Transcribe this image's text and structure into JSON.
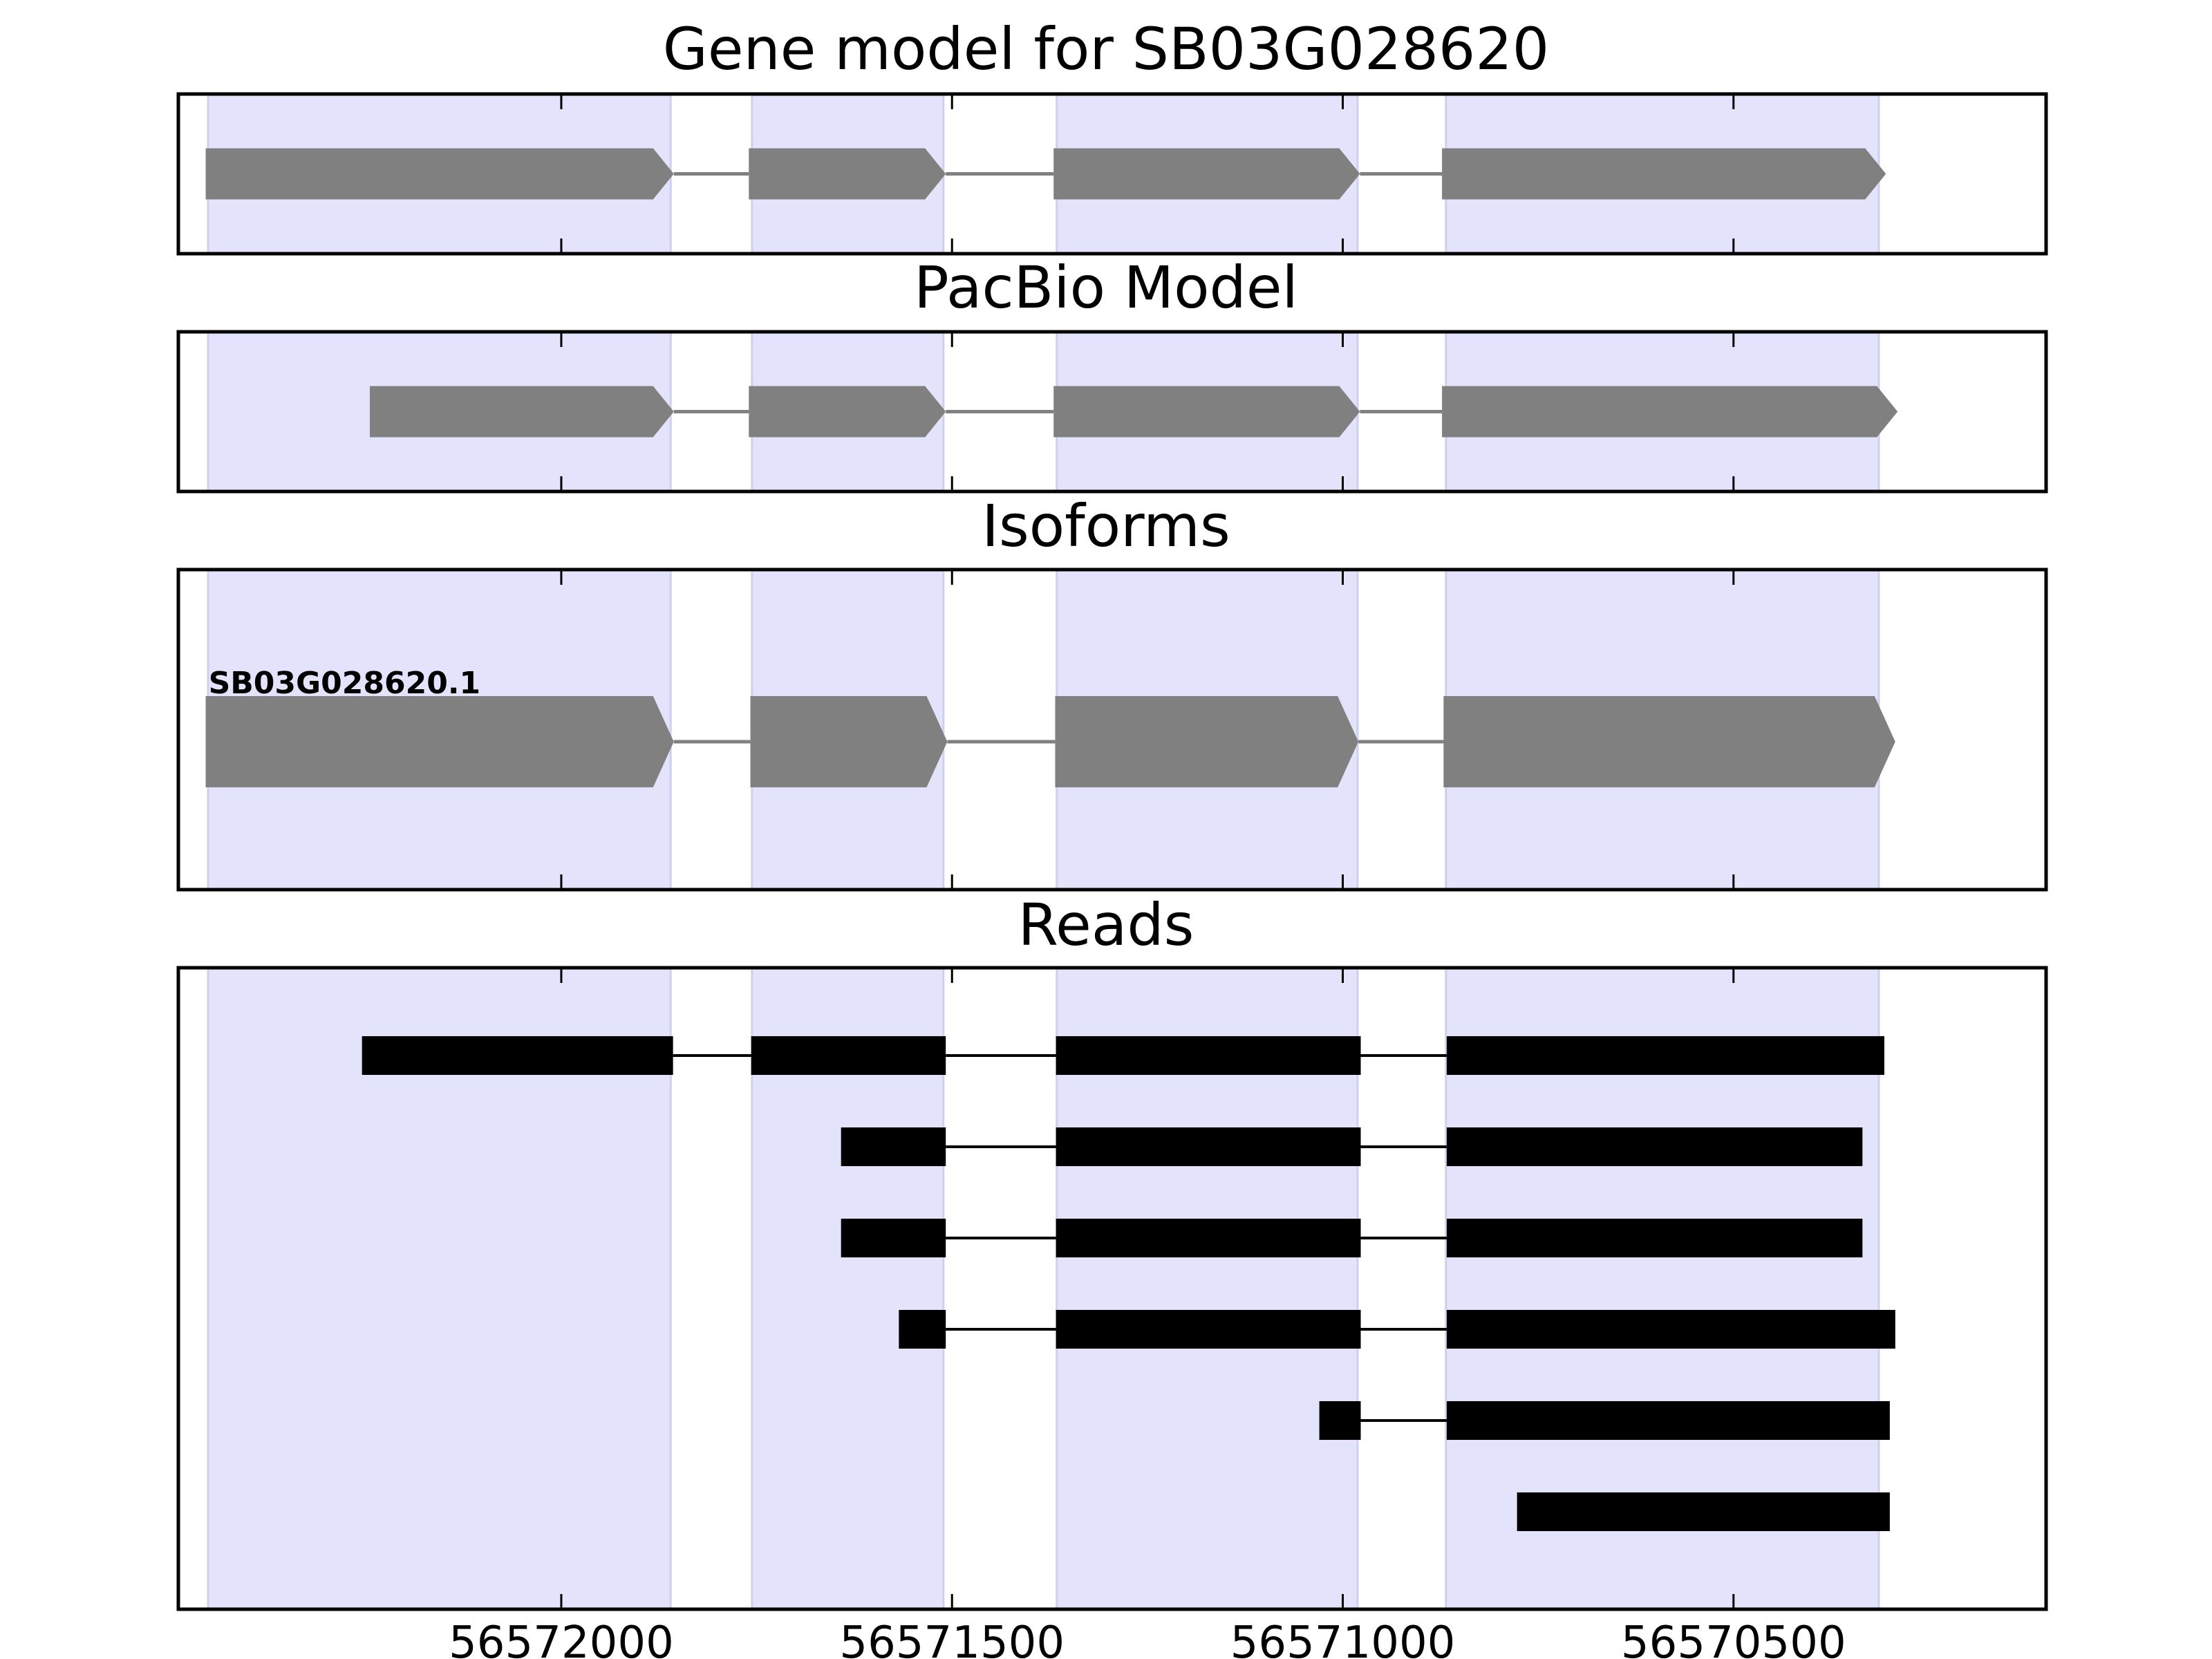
{
  "chart_data": {
    "type": "gene-structure",
    "x_axis": {
      "range": [
        56572490,
        56570100
      ],
      "reversed": true,
      "ticks": [
        56572000,
        56571500,
        56571000,
        56570500
      ],
      "tick_labels": [
        "56572000",
        "56571500",
        "56571000",
        "56570500"
      ]
    },
    "highlight_regions": [
      [
        56572452,
        56571860
      ],
      [
        56571756,
        56571511
      ],
      [
        56571366,
        56570981
      ],
      [
        56570868,
        56570314
      ]
    ],
    "colors": {
      "highlight": "#e3e3fb",
      "highlight_edge": "#d0d0ee",
      "feature": "#808080",
      "intron": "#808080",
      "read": "#000000",
      "frame": "#000000"
    },
    "panels": [
      {
        "title": "Gene model for SB03G028620",
        "kind": "gene",
        "models": [
          {
            "label": "",
            "exons": [
              [
                56572455,
                56571856
              ],
              [
                56571760,
                56571508
              ],
              [
                56571370,
                56570978
              ],
              [
                56570873,
                56570305
              ]
            ]
          }
        ]
      },
      {
        "title": "PacBio Model",
        "kind": "gene",
        "models": [
          {
            "label": "",
            "exons": [
              [
                56572245,
                56571856
              ],
              [
                56571760,
                56571508
              ],
              [
                56571370,
                56570978
              ],
              [
                56570873,
                56570290
              ]
            ]
          }
        ]
      },
      {
        "title": "Isoforms",
        "kind": "gene",
        "models": [
          {
            "label": "SB03G028620.1",
            "exons": [
              [
                56572455,
                56571856
              ],
              [
                56571758,
                56571506
              ],
              [
                56571368,
                56570980
              ],
              [
                56570871,
                56570293
              ]
            ]
          }
        ]
      },
      {
        "title": "Reads",
        "kind": "reads",
        "reads": [
          [
            [
              56572255,
              56571857
            ],
            [
              56571757,
              56571508
            ],
            [
              56571367,
              56570977
            ],
            [
              56570867,
              56570307
            ]
          ],
          [
            [
              56571642,
              56571508
            ],
            [
              56571367,
              56570977
            ],
            [
              56570867,
              56570335
            ]
          ],
          [
            [
              56571642,
              56571508
            ],
            [
              56571367,
              56570977
            ],
            [
              56570867,
              56570335
            ]
          ],
          [
            [
              56571568,
              56571508
            ],
            [
              56571367,
              56570977
            ],
            [
              56570867,
              56570293
            ]
          ],
          [
            [
              56571030,
              56570977
            ],
            [
              56570867,
              56570300
            ]
          ],
          [
            [
              56570777,
              56570300
            ]
          ]
        ]
      }
    ]
  }
}
